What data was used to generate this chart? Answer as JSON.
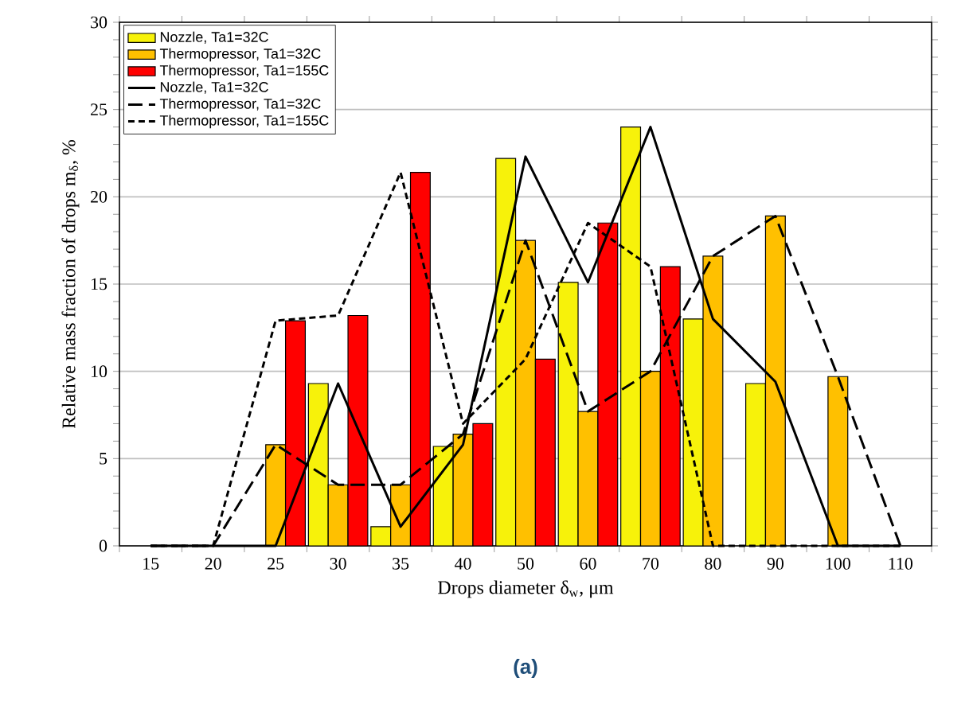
{
  "chart_data": {
    "type": "bar",
    "xlabel": "Drops diameter δ$_{w}$, μm",
    "ylabel": "Relative mass fraction of drops m$_{δ}$, %",
    "categories": [
      "15",
      "20",
      "25",
      "30",
      "35",
      "40",
      "50",
      "60",
      "70",
      "80",
      "90",
      "100",
      "110"
    ],
    "series": [
      {
        "name": "Nozzle, Ta1=32C",
        "color": "#f7f20a",
        "values": [
          null,
          null,
          null,
          9.3,
          1.1,
          5.7,
          22.2,
          15.1,
          24.0,
          13.0,
          9.3,
          null,
          null
        ]
      },
      {
        "name": "Thermopressor, Ta1=32C",
        "color": "#ffc000",
        "values": [
          null,
          null,
          5.8,
          3.5,
          3.5,
          6.4,
          17.5,
          7.7,
          10.0,
          16.6,
          18.9,
          9.7,
          null
        ]
      },
      {
        "name": "Thermopressor, Ta1=155C",
        "color": "#ff0000",
        "values": [
          null,
          null,
          12.9,
          13.2,
          21.4,
          7.0,
          10.7,
          18.5,
          16.0,
          null,
          null,
          null,
          null
        ]
      },
      {
        "name": "Nozzle, Ta1=32C",
        "type": "line",
        "line_style": "solid",
        "color": "#000000",
        "values": [
          0,
          0,
          0,
          9.3,
          1.1,
          5.8,
          22.3,
          15.1,
          24.0,
          13.0,
          9.4,
          0,
          0
        ]
      },
      {
        "name": "Thermopressor, Ta1=32C",
        "type": "line",
        "line_style": "dashed",
        "color": "#000000",
        "values": [
          0,
          0,
          5.8,
          3.5,
          3.5,
          6.4,
          17.5,
          7.7,
          10.0,
          16.6,
          18.9,
          9.7,
          0
        ]
      },
      {
        "name": "Thermopressor, Ta1=155C",
        "type": "line",
        "line_style": "dotted",
        "color": "#000000",
        "values": [
          0,
          0,
          12.9,
          13.2,
          21.4,
          7.0,
          10.7,
          18.5,
          16.0,
          0,
          0,
          0,
          0
        ]
      }
    ],
    "ylim": [
      0,
      30
    ],
    "yticks": [
      0,
      5,
      10,
      15,
      20,
      25,
      30
    ],
    "grid": "y",
    "legend": "top left",
    "marker": "none",
    "annotations": [
      "(a)"
    ]
  }
}
